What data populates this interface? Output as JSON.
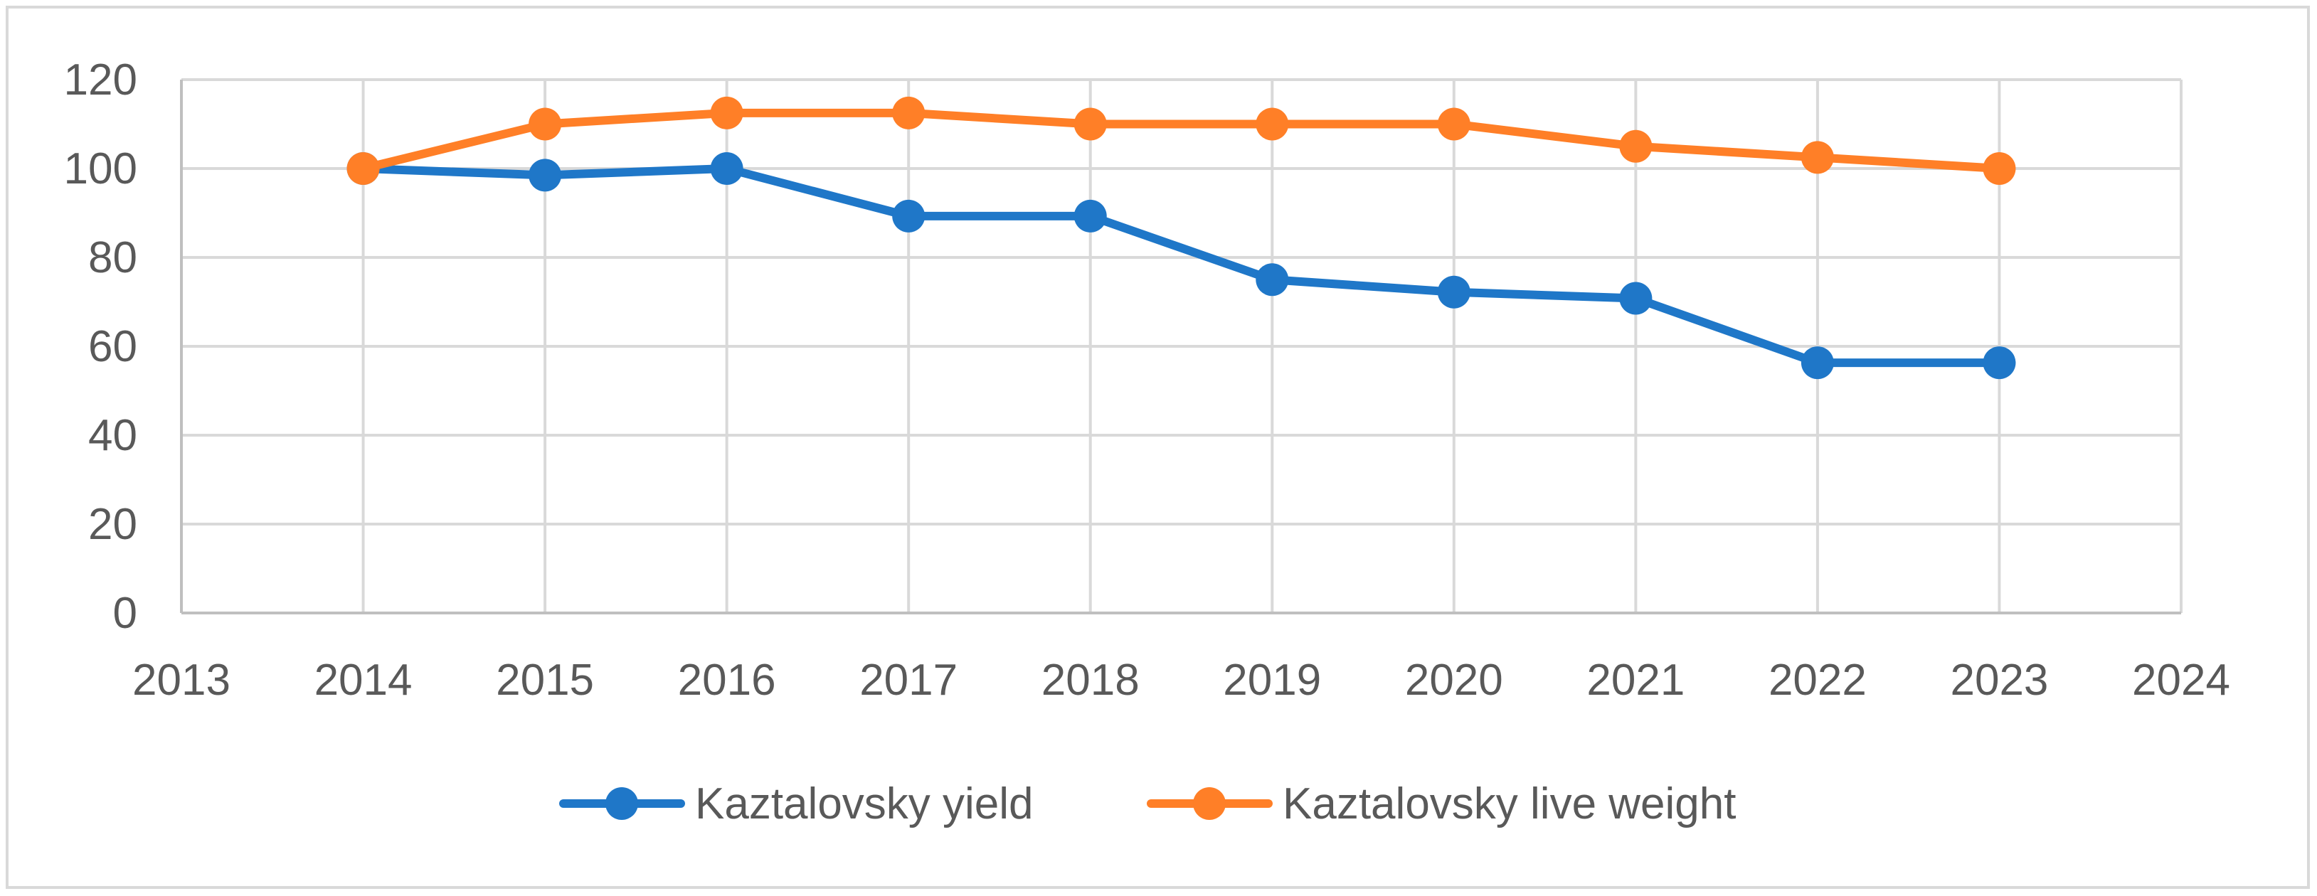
{
  "chart_data": {
    "type": "line",
    "title": "",
    "xlabel": "",
    "ylabel": "",
    "xlim": [
      2013,
      2024
    ],
    "ylim": [
      0,
      120
    ],
    "x_ticks": [
      2013,
      2014,
      2015,
      2016,
      2017,
      2018,
      2019,
      2020,
      2021,
      2022,
      2023,
      2024
    ],
    "y_ticks": [
      0,
      20,
      40,
      60,
      80,
      100,
      120
    ],
    "grid": true,
    "legend_position": "bottom",
    "x": [
      2014,
      2015,
      2016,
      2017,
      2018,
      2019,
      2020,
      2021,
      2022,
      2023
    ],
    "series": [
      {
        "name": "Kaztalovsky yield",
        "color": "#1f77c8",
        "values": [
          100,
          98.5,
          100,
          89.3,
          89.3,
          75,
          72.2,
          70.8,
          56.3,
          56.3
        ]
      },
      {
        "name": "Kaztalovsky live weight",
        "color": "#ff7f27",
        "values": [
          100,
          110,
          112.5,
          112.5,
          110,
          110,
          110,
          105,
          102.5,
          100
        ]
      }
    ]
  }
}
